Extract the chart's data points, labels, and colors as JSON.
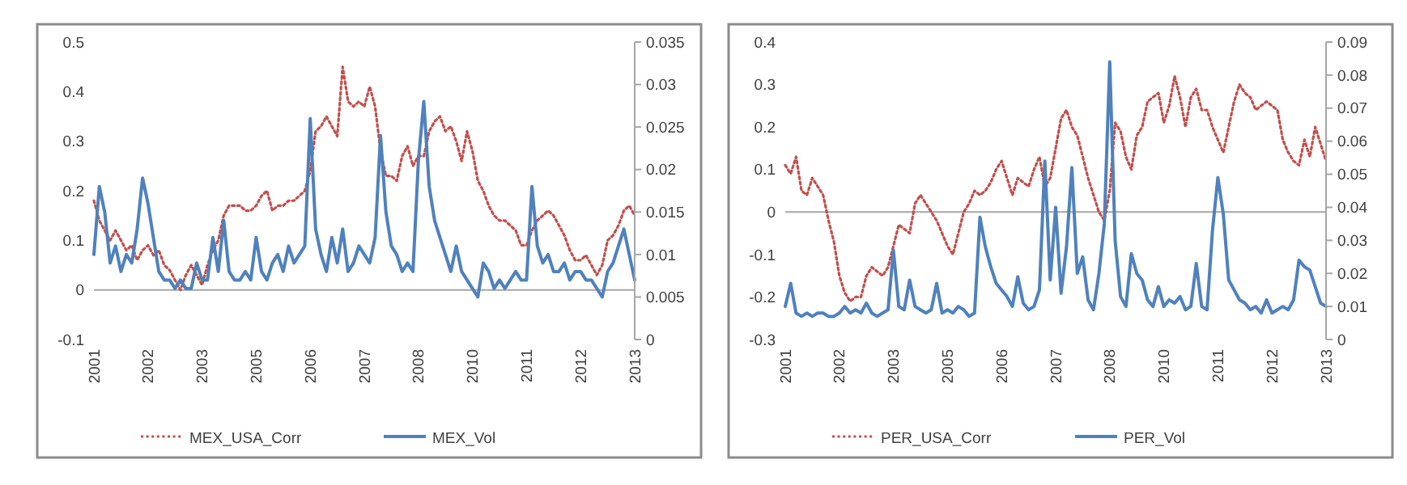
{
  "chart_data": [
    {
      "type": "line",
      "categories": [
        "2001",
        null,
        null,
        null,
        null,
        null,
        null,
        null,
        null,
        null,
        "2002",
        null,
        null,
        null,
        null,
        null,
        null,
        null,
        null,
        null,
        "2003",
        null,
        null,
        null,
        null,
        null,
        null,
        null,
        null,
        null,
        "2005",
        null,
        null,
        null,
        null,
        null,
        null,
        null,
        null,
        null,
        "2006",
        null,
        null,
        null,
        null,
        null,
        null,
        null,
        null,
        null,
        "2007",
        null,
        null,
        null,
        null,
        null,
        null,
        null,
        null,
        null,
        "2008",
        null,
        null,
        null,
        null,
        null,
        null,
        null,
        null,
        null,
        "2010",
        null,
        null,
        null,
        null,
        null,
        null,
        null,
        null,
        null,
        "2011",
        null,
        null,
        null,
        null,
        null,
        null,
        null,
        null,
        null,
        "2012",
        null,
        null,
        null,
        null,
        null,
        null,
        null,
        null,
        null,
        "2013"
      ],
      "ylim": [
        -0.1,
        0.5
      ],
      "yticks": [
        -0.1,
        0,
        0.1,
        0.2,
        0.3,
        0.4,
        0.5
      ],
      "y2lim": [
        0,
        0.035
      ],
      "y2ticks": [
        0,
        0.005,
        0.01,
        0.015,
        0.02,
        0.025,
        0.03,
        0.035
      ],
      "legend": "bottom",
      "ref_lines": [
        {
          "axis": "y",
          "value": 0,
          "color": "#a6a6a6"
        }
      ],
      "series": [
        {
          "name": "MEX_USA_Corr",
          "color": "#c0504d",
          "line_style": "dotted",
          "values": [
            0.18,
            0.14,
            0.12,
            0.1,
            0.12,
            0.1,
            0.08,
            0.09,
            0.06,
            0.08,
            0.09,
            0.07,
            0.08,
            0.05,
            0.04,
            0.02,
            0.0,
            0.03,
            0.05,
            0.03,
            0.01,
            0.05,
            0.08,
            0.1,
            0.15,
            0.17,
            0.17,
            0.17,
            0.16,
            0.16,
            0.17,
            0.19,
            0.2,
            0.16,
            0.17,
            0.17,
            0.18,
            0.18,
            0.19,
            0.2,
            0.24,
            0.32,
            0.33,
            0.35,
            0.33,
            0.31,
            0.45,
            0.38,
            0.37,
            0.38,
            0.37,
            0.41,
            0.37,
            0.28,
            0.23,
            0.23,
            0.22,
            0.27,
            0.29,
            0.25,
            0.27,
            0.27,
            0.32,
            0.34,
            0.35,
            0.32,
            0.33,
            0.3,
            0.26,
            0.32,
            0.28,
            0.22,
            0.2,
            0.17,
            0.15,
            0.14,
            0.14,
            0.13,
            0.12,
            0.09,
            0.09,
            0.12,
            0.14,
            0.15,
            0.16,
            0.15,
            0.13,
            0.11,
            0.08,
            0.06,
            0.06,
            0.07,
            0.05,
            0.03,
            0.05,
            0.1,
            0.11,
            0.13,
            0.16,
            0.17,
            0.15
          ]
        },
        {
          "name": "MEX_Vol",
          "color": "#4f81bd",
          "line_style": "solid",
          "axis": "y2",
          "values": [
            0.01,
            0.018,
            0.015,
            0.009,
            0.011,
            0.008,
            0.01,
            0.009,
            0.013,
            0.019,
            0.016,
            0.012,
            0.008,
            0.007,
            0.007,
            0.006,
            0.007,
            0.006,
            0.006,
            0.009,
            0.007,
            0.007,
            0.012,
            0.008,
            0.014,
            0.008,
            0.007,
            0.007,
            0.008,
            0.007,
            0.012,
            0.008,
            0.007,
            0.009,
            0.01,
            0.008,
            0.011,
            0.009,
            0.01,
            0.011,
            0.026,
            0.013,
            0.01,
            0.008,
            0.012,
            0.009,
            0.013,
            0.008,
            0.009,
            0.011,
            0.01,
            0.009,
            0.012,
            0.024,
            0.015,
            0.011,
            0.01,
            0.008,
            0.009,
            0.008,
            0.021,
            0.028,
            0.018,
            0.014,
            0.012,
            0.01,
            0.008,
            0.011,
            0.008,
            0.007,
            0.006,
            0.005,
            0.009,
            0.008,
            0.006,
            0.007,
            0.006,
            0.007,
            0.008,
            0.007,
            0.007,
            0.018,
            0.011,
            0.009,
            0.01,
            0.008,
            0.008,
            0.009,
            0.007,
            0.008,
            0.008,
            0.007,
            0.007,
            0.006,
            0.005,
            0.008,
            0.009,
            0.011,
            0.013,
            0.01,
            0.007
          ]
        }
      ]
    },
    {
      "type": "line",
      "categories": [
        "2001",
        null,
        null,
        null,
        null,
        null,
        null,
        null,
        null,
        null,
        "2002",
        null,
        null,
        null,
        null,
        null,
        null,
        null,
        null,
        null,
        "2003",
        null,
        null,
        null,
        null,
        null,
        null,
        null,
        null,
        null,
        "2005",
        null,
        null,
        null,
        null,
        null,
        null,
        null,
        null,
        null,
        "2006",
        null,
        null,
        null,
        null,
        null,
        null,
        null,
        null,
        null,
        "2007",
        null,
        null,
        null,
        null,
        null,
        null,
        null,
        null,
        null,
        "2008",
        null,
        null,
        null,
        null,
        null,
        null,
        null,
        null,
        null,
        "2010",
        null,
        null,
        null,
        null,
        null,
        null,
        null,
        null,
        null,
        "2011",
        null,
        null,
        null,
        null,
        null,
        null,
        null,
        null,
        null,
        "2012",
        null,
        null,
        null,
        null,
        null,
        null,
        null,
        null,
        null,
        "2013"
      ],
      "ylim": [
        -0.3,
        0.4
      ],
      "yticks": [
        -0.3,
        -0.2,
        -0.1,
        0,
        0.1,
        0.2,
        0.3,
        0.4
      ],
      "y2lim": [
        0,
        0.09
      ],
      "y2ticks": [
        0,
        0.01,
        0.02,
        0.03,
        0.04,
        0.05,
        0.06,
        0.07,
        0.08,
        0.09
      ],
      "legend": "bottom",
      "ref_lines": [
        {
          "axis": "y",
          "value": 0,
          "color": "#a6a6a6"
        }
      ],
      "series": [
        {
          "name": "PER_USA_Corr",
          "color": "#c0504d",
          "line_style": "dotted",
          "values": [
            0.11,
            0.09,
            0.13,
            0.05,
            0.04,
            0.08,
            0.06,
            0.04,
            -0.02,
            -0.07,
            -0.15,
            -0.19,
            -0.21,
            -0.2,
            -0.2,
            -0.15,
            -0.13,
            -0.14,
            -0.15,
            -0.13,
            -0.08,
            -0.03,
            -0.04,
            -0.05,
            0.02,
            0.04,
            0.02,
            0.0,
            -0.02,
            -0.05,
            -0.08,
            -0.1,
            -0.05,
            0.0,
            0.02,
            0.05,
            0.04,
            0.05,
            0.07,
            0.1,
            0.12,
            0.08,
            0.04,
            0.08,
            0.07,
            0.06,
            0.1,
            0.13,
            0.06,
            0.08,
            0.15,
            0.22,
            0.24,
            0.2,
            0.18,
            0.13,
            0.08,
            0.04,
            0.0,
            -0.02,
            0.05,
            0.21,
            0.19,
            0.13,
            0.1,
            0.18,
            0.2,
            0.26,
            0.27,
            0.28,
            0.21,
            0.25,
            0.32,
            0.27,
            0.2,
            0.27,
            0.29,
            0.24,
            0.24,
            0.2,
            0.17,
            0.14,
            0.2,
            0.26,
            0.3,
            0.28,
            0.27,
            0.24,
            0.25,
            0.26,
            0.25,
            0.24,
            0.17,
            0.14,
            0.12,
            0.11,
            0.17,
            0.13,
            0.2,
            0.16,
            0.12
          ]
        },
        {
          "name": "PER_Vol",
          "color": "#4f81bd",
          "line_style": "solid",
          "axis": "y2",
          "values": [
            0.01,
            0.017,
            0.008,
            0.007,
            0.008,
            0.007,
            0.008,
            0.008,
            0.007,
            0.007,
            0.008,
            0.01,
            0.008,
            0.009,
            0.008,
            0.011,
            0.008,
            0.007,
            0.008,
            0.009,
            0.027,
            0.01,
            0.009,
            0.018,
            0.01,
            0.009,
            0.008,
            0.009,
            0.017,
            0.008,
            0.009,
            0.008,
            0.01,
            0.009,
            0.007,
            0.008,
            0.037,
            0.028,
            0.022,
            0.017,
            0.015,
            0.013,
            0.01,
            0.019,
            0.011,
            0.009,
            0.01,
            0.015,
            0.054,
            0.018,
            0.04,
            0.014,
            0.028,
            0.052,
            0.02,
            0.025,
            0.012,
            0.009,
            0.02,
            0.035,
            0.084,
            0.03,
            0.013,
            0.01,
            0.026,
            0.02,
            0.018,
            0.012,
            0.01,
            0.016,
            0.01,
            0.012,
            0.011,
            0.013,
            0.009,
            0.01,
            0.023,
            0.01,
            0.009,
            0.033,
            0.049,
            0.038,
            0.018,
            0.015,
            0.012,
            0.011,
            0.009,
            0.01,
            0.008,
            0.012,
            0.008,
            0.009,
            0.01,
            0.009,
            0.012,
            0.024,
            0.022,
            0.021,
            0.016,
            0.011,
            0.01
          ]
        }
      ]
    }
  ]
}
